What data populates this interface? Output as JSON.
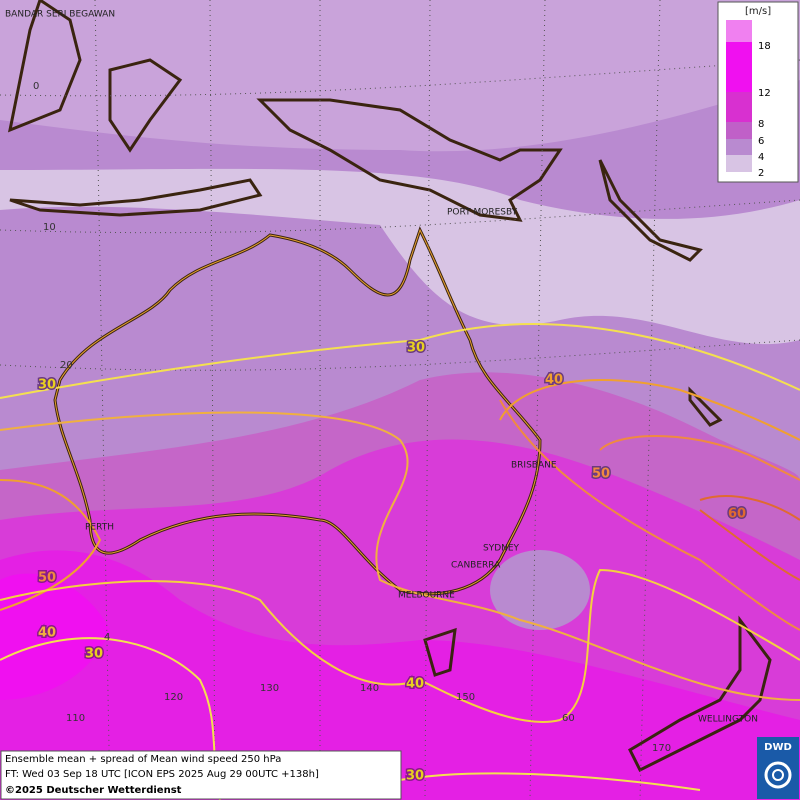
{
  "map": {
    "cities": [
      "BANDAR SERI BEGAWAN",
      "PORT MORESBY",
      "BRISBANE",
      "PERTH",
      "SYDNEY",
      "CANBERRA",
      "MELBOURNE",
      "WELLINGTON"
    ],
    "grid_labels": [
      "0",
      "10",
      "20",
      "110",
      "120",
      "130",
      "140",
      "150",
      "60",
      "170",
      "4"
    ],
    "contour_labels": [
      "30",
      "30",
      "40",
      "50",
      "60",
      "50",
      "40",
      "30",
      "40",
      "30"
    ],
    "legend": {
      "unit": "[m/s]",
      "ticks": [
        "18",
        "12",
        "8",
        "6",
        "4",
        "2"
      ]
    },
    "footer": {
      "line1": "Ensemble mean + spread of Mean wind speed 250 hPa",
      "line2": "FT: Wed 03 Sep 18 UTC [ICON EPS 2025 Aug 29 00UTC +138h]",
      "line3": "©2025 Deutscher Wetterdienst"
    },
    "logo": "DWD"
  }
}
